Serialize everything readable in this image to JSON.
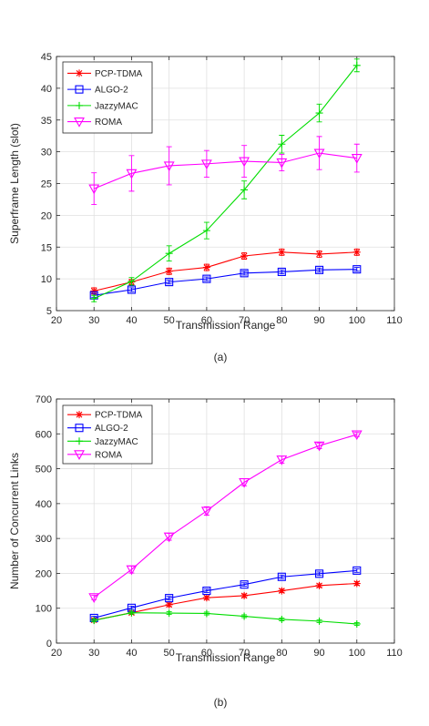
{
  "figure": {
    "panel_a_label": "(a)",
    "panel_b_label": "(b)"
  },
  "legend_order": [
    "PCP-TDMA",
    "ALGO-2",
    "JazzyMAC",
    "ROMA"
  ],
  "colors": {
    "PCP-TDMA": "#ff0000",
    "ALGO-2": "#0000ff",
    "JazzyMAC": "#00dd00",
    "ROMA": "#ff00ff",
    "axis": "#262626",
    "grid": "#e0e0e0"
  },
  "markers": {
    "PCP-TDMA": "asterisk",
    "ALGO-2": "square",
    "JazzyMAC": "plus",
    "ROMA": "triangle-down"
  },
  "chart_data": [
    {
      "type": "line",
      "panel": "(a)",
      "title": "",
      "xlabel": "Transmission Range",
      "ylabel": "Superframe Length (slot)",
      "xlim": [
        20,
        110
      ],
      "ylim": [
        5,
        45
      ],
      "xticks": [
        20,
        30,
        40,
        50,
        60,
        70,
        80,
        90,
        100,
        110
      ],
      "yticks": [
        5,
        10,
        15,
        20,
        25,
        30,
        35,
        40,
        45
      ],
      "grid": true,
      "legend": "top-left",
      "x": [
        30,
        40,
        50,
        60,
        70,
        80,
        90,
        100
      ],
      "series": [
        {
          "name": "PCP-TDMA",
          "values": [
            8.1,
            9.5,
            11.2,
            11.8,
            13.6,
            14.2,
            13.9,
            14.2
          ],
          "errors": [
            0.5,
            0.4,
            0.5,
            0.5,
            0.5,
            0.5,
            0.5,
            0.5
          ]
        },
        {
          "name": "ALGO-2",
          "values": [
            7.4,
            8.3,
            9.5,
            10.0,
            10.9,
            11.1,
            11.4,
            11.5
          ],
          "errors": [
            0.3,
            0.3,
            0.3,
            0.3,
            0.3,
            0.3,
            0.3,
            0.3
          ]
        },
        {
          "name": "JazzyMAC",
          "values": [
            6.9,
            9.6,
            14.0,
            17.6,
            24.0,
            31.2,
            36.1,
            43.6
          ],
          "errors": [
            0.5,
            0.6,
            1.2,
            1.3,
            1.4,
            1.4,
            1.4,
            1.0
          ]
        },
        {
          "name": "ROMA",
          "values": [
            24.2,
            26.6,
            27.8,
            28.1,
            28.5,
            28.3,
            29.8,
            29.0
          ],
          "errors": [
            2.5,
            2.8,
            3.0,
            2.1,
            2.5,
            1.3,
            2.6,
            2.2
          ]
        }
      ]
    },
    {
      "type": "line",
      "panel": "(b)",
      "title": "",
      "xlabel": "Transmission Range",
      "ylabel": "Number of Concurrent Links",
      "xlim": [
        20,
        110
      ],
      "ylim": [
        0,
        700
      ],
      "xticks": [
        20,
        30,
        40,
        50,
        60,
        70,
        80,
        90,
        100,
        110
      ],
      "yticks": [
        0,
        100,
        200,
        300,
        400,
        500,
        600,
        700
      ],
      "grid": true,
      "legend": "top-left",
      "x": [
        30,
        40,
        50,
        60,
        70,
        80,
        90,
        100
      ],
      "series": [
        {
          "name": "PCP-TDMA",
          "values": [
            66,
            87,
            110,
            130,
            136,
            150,
            165,
            171
          ],
          "errors": [
            5,
            5,
            5,
            5,
            5,
            5,
            5,
            5
          ]
        },
        {
          "name": "ALGO-2",
          "values": [
            72,
            101,
            129,
            150,
            168,
            190,
            199,
            208
          ],
          "errors": [
            5,
            5,
            5,
            5,
            5,
            5,
            5,
            5
          ]
        },
        {
          "name": "JazzyMAC",
          "values": [
            65,
            87,
            86,
            85,
            77,
            68,
            63,
            55
          ],
          "errors": [
            4,
            4,
            4,
            4,
            4,
            4,
            4,
            4
          ]
        },
        {
          "name": "ROMA",
          "values": [
            131,
            211,
            305,
            379,
            461,
            526,
            566,
            598
          ],
          "errors": [
            6,
            10,
            10,
            12,
            10,
            10,
            8,
            6
          ]
        }
      ]
    }
  ]
}
